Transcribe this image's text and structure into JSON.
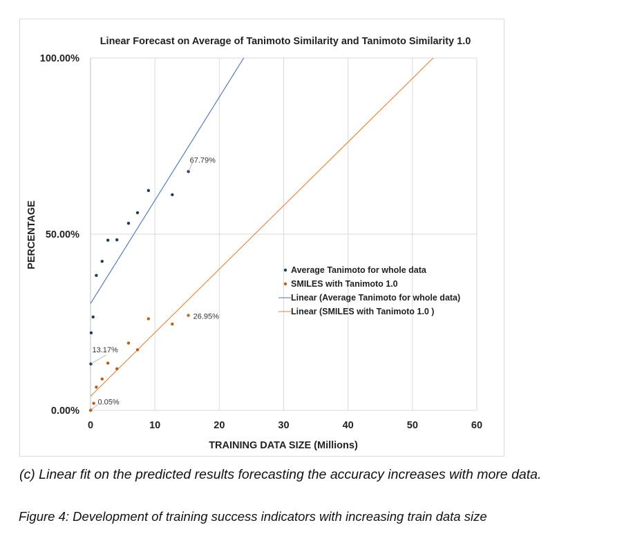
{
  "chart_data": {
    "type": "scatter",
    "title": "Linear Forecast on Average of Tanimoto Similarity and Tanimoto Similarity 1.0",
    "xlabel": "TRAINING DATA SIZE (Millions)",
    "ylabel": "PERCENTAGE",
    "xlim": [
      0,
      60
    ],
    "ylim": [
      0,
      1
    ],
    "x_ticks": [
      "0",
      "10",
      "20",
      "30",
      "40",
      "50",
      "60"
    ],
    "y_ticks": [
      "0.00%",
      "50.00%",
      "100.00%"
    ],
    "grid": true,
    "legend_position": "right",
    "series": [
      {
        "name": "Average Tanimoto for whole data",
        "color": "#1f3864",
        "points": [
          {
            "x": 0.05,
            "y": 0.1317
          },
          {
            "x": 0.1,
            "y": 0.22
          },
          {
            "x": 0.4,
            "y": 0.265
          },
          {
            "x": 0.9,
            "y": 0.383
          },
          {
            "x": 1.8,
            "y": 0.423
          },
          {
            "x": 2.7,
            "y": 0.483
          },
          {
            "x": 4.1,
            "y": 0.484
          },
          {
            "x": 5.9,
            "y": 0.531
          },
          {
            "x": 7.3,
            "y": 0.561
          },
          {
            "x": 9.0,
            "y": 0.624
          },
          {
            "x": 12.7,
            "y": 0.612
          },
          {
            "x": 15.2,
            "y": 0.6779
          }
        ]
      },
      {
        "name": "SMILES with Tanimoto 1.0",
        "color": "#c55a11",
        "points": [
          {
            "x": 0.0,
            "y": 0.0
          },
          {
            "x": 0.05,
            "y": 0.0005
          },
          {
            "x": 0.5,
            "y": 0.02
          },
          {
            "x": 0.9,
            "y": 0.066
          },
          {
            "x": 1.8,
            "y": 0.089
          },
          {
            "x": 2.7,
            "y": 0.134
          },
          {
            "x": 4.1,
            "y": 0.118
          },
          {
            "x": 5.9,
            "y": 0.191
          },
          {
            "x": 7.3,
            "y": 0.172
          },
          {
            "x": 9.0,
            "y": 0.26
          },
          {
            "x": 12.7,
            "y": 0.245
          },
          {
            "x": 15.2,
            "y": 0.2695
          }
        ]
      }
    ],
    "trendlines": [
      {
        "name": "Linear (Average Tanimoto for whole data)",
        "color": "#4472c4",
        "intercept": 0.303,
        "slope": 0.0293
      },
      {
        "name": "Linear (SMILES with Tanimoto 1.0 )",
        "color": "#ed7d31",
        "intercept": 0.04,
        "slope": 0.01804
      }
    ],
    "annotations": [
      {
        "text": "67.79%",
        "x": 15.2,
        "y": 0.6779,
        "series": 0
      },
      {
        "text": "13.17%",
        "x": 0.05,
        "y": 0.1317,
        "series": 0
      },
      {
        "text": "26.95%",
        "x": 15.2,
        "y": 0.2695,
        "series": 1
      },
      {
        "text": "0.05%",
        "x": 0.05,
        "y": 0.0005,
        "series": 1
      }
    ]
  },
  "captions": {
    "subfigure": "(c) Linear fit on the predicted results forecasting the accuracy increases with more data.",
    "figure": "Figure 4: Development of training success indicators with increasing train data size"
  }
}
